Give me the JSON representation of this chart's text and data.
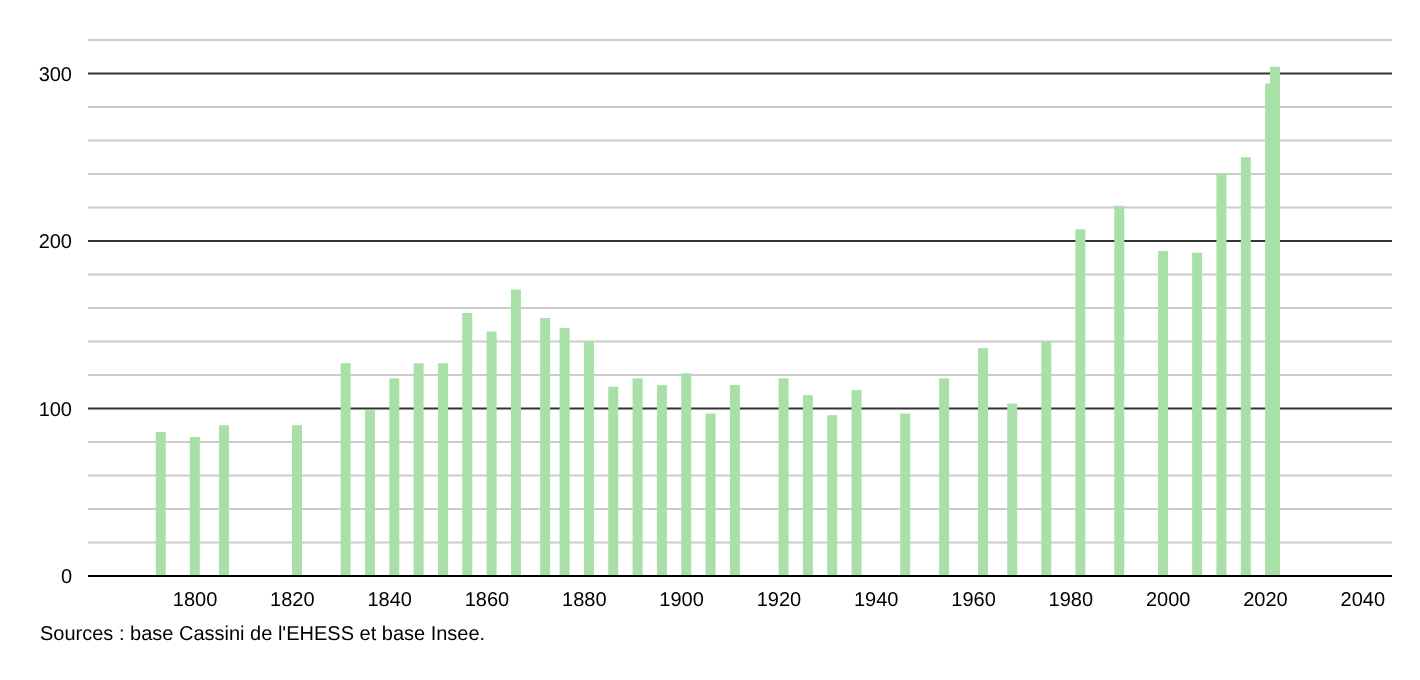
{
  "chart_data": {
    "type": "bar",
    "x": [
      1793,
      1800,
      1806,
      1821,
      1831,
      1836,
      1841,
      1846,
      1851,
      1856,
      1861,
      1866,
      1872,
      1876,
      1881,
      1886,
      1891,
      1896,
      1901,
      1906,
      1911,
      1921,
      1926,
      1931,
      1936,
      1946,
      1954,
      1962,
      1968,
      1975,
      1982,
      1990,
      1999,
      2006,
      2011,
      2016,
      2021,
      2022
    ],
    "values": [
      86,
      83,
      90,
      90,
      127,
      99,
      118,
      127,
      127,
      157,
      146,
      171,
      154,
      148,
      140,
      113,
      118,
      114,
      121,
      97,
      114,
      118,
      108,
      96,
      111,
      97,
      118,
      136,
      103,
      140,
      207,
      221,
      194,
      193,
      240,
      250,
      294,
      304
    ],
    "color": "#a8e0a8",
    "xlim": [
      1778,
      2046
    ],
    "xticks": [
      1800,
      1820,
      1840,
      1860,
      1880,
      1900,
      1920,
      1940,
      1960,
      1980,
      2000,
      2020,
      2040
    ],
    "ylim": [
      0,
      320
    ],
    "yticks": [
      0,
      {
        "value": 20,
        "label": null
      },
      {
        "value": 40,
        "label": null
      },
      {
        "value": 60,
        "label": null
      },
      {
        "value": 80,
        "label": null
      },
      100,
      {
        "value": 120,
        "label": null
      },
      {
        "value": 140,
        "label": null
      },
      {
        "value": 160,
        "label": null
      },
      {
        "value": 180,
        "label": null
      },
      200,
      {
        "value": 220,
        "label": null
      },
      {
        "value": 240,
        "label": null
      },
      {
        "value": 260,
        "label": null
      },
      {
        "value": 280,
        "label": null
      },
      300,
      {
        "value": 320,
        "label": null
      }
    ],
    "grid": "y",
    "annotations": [
      "Sources : base Cassini de l'EHESS et base Insee."
    ]
  }
}
